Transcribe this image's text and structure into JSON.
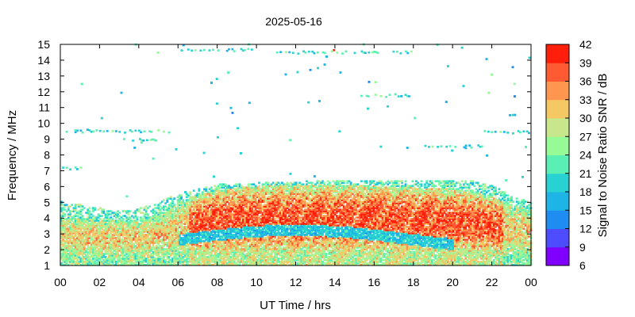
{
  "chart_data": {
    "type": "heatmap",
    "title": "2025-05-16",
    "xlabel": "UT Time / hrs",
    "ylabel": "Frequency / MHz",
    "colorbar_label": "Signal to Noise Ratio SNR / dB",
    "xlim": [
      0,
      24
    ],
    "ylim": [
      1,
      15
    ],
    "x_ticks": [
      "00",
      "02",
      "04",
      "06",
      "08",
      "10",
      "12",
      "14",
      "16",
      "18",
      "20",
      "22",
      "00"
    ],
    "y_ticks": [
      1,
      2,
      3,
      4,
      5,
      6,
      7,
      8,
      9,
      10,
      11,
      12,
      13,
      14,
      15
    ],
    "colorbar": {
      "min": 6,
      "max": 42,
      "ticks": [
        6,
        9,
        12,
        15,
        18,
        21,
        24,
        27,
        30,
        33,
        36,
        39,
        42
      ],
      "colors": [
        "#7f00ff",
        "#4d4dff",
        "#1e8cf0",
        "#1eb4e6",
        "#28d2d2",
        "#5af0b4",
        "#96fa96",
        "#c8e68c",
        "#f5c864",
        "#ff9650",
        "#ff5a32",
        "#ff1e0a"
      ]
    },
    "echo_profile": {
      "x": [
        0,
        1,
        2,
        3,
        4,
        5,
        5.5,
        6,
        7,
        8,
        10,
        12,
        14,
        16,
        18,
        20,
        21,
        22,
        23,
        24
      ],
      "foF2_MHz": [
        5.0,
        4.8,
        4.6,
        4.4,
        4.6,
        5.0,
        5.3,
        5.4,
        5.8,
        6.1,
        6.2,
        6.3,
        6.3,
        6.3,
        6.3,
        6.4,
        6.3,
        6.0,
        5.4,
        4.9
      ],
      "intense_band_top_MHz": [
        4.0,
        4.0,
        3.9,
        3.8,
        3.9,
        4.2,
        4.6,
        5.0,
        5.4,
        5.8,
        6.0,
        6.0,
        6.0,
        6.0,
        5.9,
        5.8,
        5.6,
        5.3,
        4.8,
        4.4
      ]
    },
    "sporadic_echoes": [
      {
        "t_start": 0.0,
        "t_end": 5.6,
        "freq_MHz": 9.45
      },
      {
        "t_start": 3.2,
        "t_end": 5.5,
        "freq_MHz": 8.9
      },
      {
        "t_start": 0.0,
        "t_end": 1.2,
        "freq_MHz": 7.1
      },
      {
        "t_start": 6.2,
        "t_end": 9.8,
        "freq_MHz": 14.6
      },
      {
        "t_start": 11.0,
        "t_end": 18.0,
        "freq_MHz": 14.45
      },
      {
        "t_start": 18.2,
        "t_end": 21.5,
        "freq_MHz": 8.5
      },
      {
        "t_start": 21.5,
        "t_end": 24.0,
        "freq_MHz": 9.4
      },
      {
        "t_start": 15.3,
        "t_end": 17.8,
        "freq_MHz": 11.7
      }
    ]
  }
}
